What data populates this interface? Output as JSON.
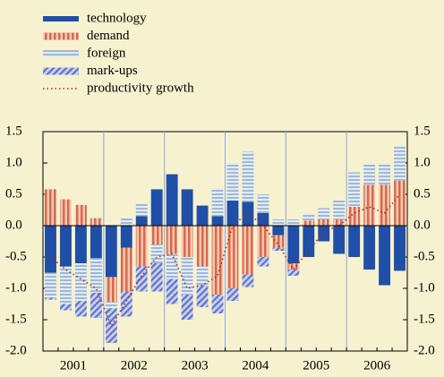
{
  "chart_data": {
    "type": "stacked_bar_line",
    "categories": [
      "2001",
      null,
      null,
      null,
      "2002",
      null,
      null,
      null,
      "2003",
      null,
      null,
      null,
      "2004",
      null,
      null,
      null,
      "2005",
      null,
      null,
      null,
      "2006",
      null,
      null,
      null
    ],
    "series": [
      {
        "name": "technology",
        "color": "#1f4fa6",
        "values": [
          -0.75,
          -0.65,
          -0.6,
          -0.52,
          -0.82,
          -0.35,
          0.15,
          0.58,
          0.82,
          0.58,
          0.32,
          0.15,
          0.4,
          0.38,
          0.2,
          -0.15,
          -0.6,
          -0.5,
          -0.25,
          -0.45,
          -0.5,
          -0.7,
          -0.95,
          -0.72
        ]
      },
      {
        "name": "demand",
        "color": "#d9694a",
        "values": [
          0.58,
          0.42,
          0.33,
          0.12,
          -0.4,
          -0.7,
          -0.65,
          -0.3,
          -0.45,
          -0.5,
          -0.65,
          -1.1,
          -1.0,
          -0.78,
          -0.5,
          -0.2,
          -0.1,
          0.08,
          0.1,
          0.1,
          0.3,
          0.65,
          0.65,
          0.72
        ]
      },
      {
        "name": "foreign",
        "color": "#9fb8d6",
        "values": [
          -0.4,
          -0.6,
          -0.6,
          -0.55,
          -0.1,
          0.12,
          0.2,
          -0.3,
          -0.4,
          -0.6,
          -0.3,
          0.45,
          0.6,
          0.8,
          0.3,
          0.1,
          0.1,
          0.1,
          0.18,
          0.3,
          0.55,
          0.33,
          0.33,
          0.55
        ]
      },
      {
        "name": "mark-ups",
        "color": "#5f73c9",
        "values": [
          -0.03,
          -0.1,
          -0.25,
          -0.4,
          -0.55,
          -0.4,
          -0.4,
          -0.45,
          -0.4,
          -0.4,
          -0.35,
          -0.3,
          -0.2,
          -0.2,
          -0.15,
          -0.05,
          -0.1,
          0,
          0,
          0,
          0,
          0,
          0,
          0
        ]
      }
    ],
    "line": {
      "name": "productivity growth",
      "color": "#a0302a",
      "values": [
        -0.5,
        -0.7,
        -0.85,
        -1.0,
        -1.6,
        -1.2,
        -0.8,
        -0.5,
        -0.45,
        -1.0,
        -0.95,
        -0.8,
        0.0,
        0.2,
        0.0,
        -0.3,
        -0.7,
        -0.4,
        -0.1,
        0.0,
        0.2,
        0.3,
        0.2,
        0.5
      ]
    },
    "ylim": [
      -2.0,
      1.5
    ],
    "yticks": [
      {
        "value": -2.0,
        "label": "-2.0"
      },
      -1.5,
      {
        "value": -1.0,
        "label": "-1.0"
      },
      -0.5,
      {
        "value": 0,
        "label": "0.0"
      },
      0.5,
      {
        "value": 1.0,
        "label": "1.0"
      },
      1.5
    ],
    "grid": false
  }
}
